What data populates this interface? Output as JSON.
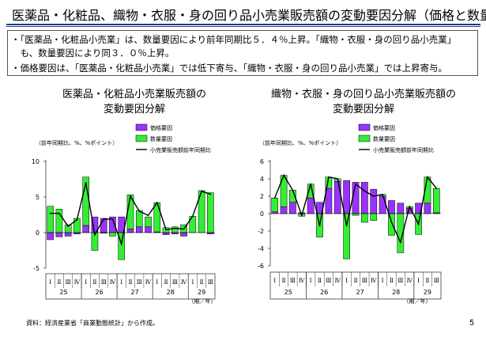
{
  "title": "医薬品・化粧品、織物・衣服・身の回り品小売業販売額の変動要因分解（価格と数量）",
  "bullets": [
    "・「医薬品・化粧品小売業」は、数量要因により前年同期比５．４％上昇。「織物・衣服・身の回り品小売業」",
    "　も、数量要因により同３．０％上昇。",
    "・価格要因は、「医薬品・化粧品小売業」では低下寄与、「織物・衣服・身の回り品小売業」では上昇寄与。"
  ],
  "source": "資料：経済産業省「商業動態統計」から作成。",
  "page_number": "5",
  "colors": {
    "price": "#9933ff",
    "quantity": "#33ee33",
    "line": "#000000",
    "rule": "#1f3a93"
  },
  "chart_data": [
    {
      "type": "bar",
      "title": "医薬品・化粧品小売業販売額の\n変動要因分解",
      "note": "（前年同期比、%、%ポイント）",
      "legend": [
        "価格要因",
        "数量要因",
        "小売業販売額前年同期比"
      ],
      "x_unit": "（期／年）",
      "quarters": [
        "Ⅰ",
        "Ⅱ",
        "Ⅲ",
        "Ⅳ",
        "Ⅰ",
        "Ⅱ",
        "Ⅲ",
        "Ⅳ",
        "Ⅰ",
        "Ⅱ",
        "Ⅲ",
        "Ⅳ",
        "Ⅰ",
        "Ⅱ",
        "Ⅲ",
        "Ⅳ",
        "Ⅰ",
        "Ⅱ",
        "Ⅲ"
      ],
      "years": [
        {
          "label": "25",
          "start": 0,
          "span": 4
        },
        {
          "label": "26",
          "start": 4,
          "span": 4
        },
        {
          "label": "27",
          "start": 8,
          "span": 4
        },
        {
          "label": "28",
          "start": 12,
          "span": 4
        },
        {
          "label": "29",
          "start": 16,
          "span": 3
        }
      ],
      "ylim": [
        -5,
        10
      ],
      "yticks": [
        -5,
        0,
        5,
        10
      ],
      "series": [
        {
          "name": "価格要因",
          "values": [
            -1.0,
            -0.6,
            -0.5,
            -0.2,
            1.0,
            2.2,
            2.0,
            2.2,
            2.2,
            0.5,
            0.8,
            0.8,
            0.1,
            -0.3,
            -0.2,
            -0.5,
            0.0,
            0.0,
            -0.2
          ]
        },
        {
          "name": "数量要因",
          "values": [
            3.7,
            3.3,
            1.1,
            2.0,
            6.8,
            -2.5,
            -0.1,
            -0.5,
            -3.8,
            4.8,
            2.3,
            1.4,
            4.1,
            0.7,
            0.8,
            1.1,
            2.3,
            5.9,
            5.6
          ]
        },
        {
          "name": "小売業販売額前年同期比",
          "values": [
            2.7,
            2.7,
            0.9,
            1.8,
            7.0,
            -0.3,
            1.9,
            1.9,
            -1.6,
            5.1,
            3.0,
            2.4,
            4.2,
            0.4,
            0.6,
            0.5,
            2.3,
            5.8,
            5.4
          ]
        }
      ]
    },
    {
      "type": "bar",
      "title": "織物・衣服・身の回り品小売業販売額の\n変動要因分解",
      "note": "（前年同期比、%、%ポイント）",
      "legend": [
        "価格要因",
        "数量要因",
        "小売業販売額前年同期比"
      ],
      "x_unit": "（期／年）",
      "quarters": [
        "Ⅰ",
        "Ⅱ",
        "Ⅲ",
        "Ⅳ",
        "Ⅰ",
        "Ⅱ",
        "Ⅲ",
        "Ⅳ",
        "Ⅰ",
        "Ⅱ",
        "Ⅲ",
        "Ⅳ",
        "Ⅰ",
        "Ⅱ",
        "Ⅲ",
        "Ⅳ",
        "Ⅰ",
        "Ⅱ",
        "Ⅲ"
      ],
      "years": [
        {
          "label": "25",
          "start": 0,
          "span": 4
        },
        {
          "label": "26",
          "start": 4,
          "span": 4
        },
        {
          "label": "27",
          "start": 8,
          "span": 4
        },
        {
          "label": "28",
          "start": 12,
          "span": 4
        },
        {
          "label": "29",
          "start": 16,
          "span": 3
        }
      ],
      "ylim": [
        -6,
        6
      ],
      "yticks": [
        -6,
        -4,
        -2,
        0,
        2,
        4,
        6
      ],
      "series": [
        {
          "name": "価格要因",
          "values": [
            0.2,
            0.8,
            1.3,
            0.1,
            1.8,
            1.3,
            2.9,
            3.7,
            3.8,
            3.6,
            3.6,
            2.8,
            2.0,
            1.5,
            1.2,
            0.6,
            1.2,
            1.2,
            0.1
          ]
        },
        {
          "name": "数量要因",
          "values": [
            1.6,
            3.6,
            1.4,
            -0.3,
            1.6,
            -2.7,
            1.3,
            0.3,
            -5.2,
            -0.2,
            -1.0,
            -0.8,
            0.2,
            -2.5,
            -4.5,
            0.2,
            -2.4,
            3.0,
            2.8
          ]
        },
        {
          "name": "小売業販売額前年同期比",
          "values": [
            1.8,
            4.4,
            2.7,
            -0.2,
            3.4,
            -1.4,
            4.2,
            4.0,
            -1.4,
            3.4,
            2.6,
            2.0,
            2.2,
            -1.0,
            -3.3,
            0.8,
            -1.2,
            4.2,
            2.9
          ]
        }
      ]
    }
  ]
}
